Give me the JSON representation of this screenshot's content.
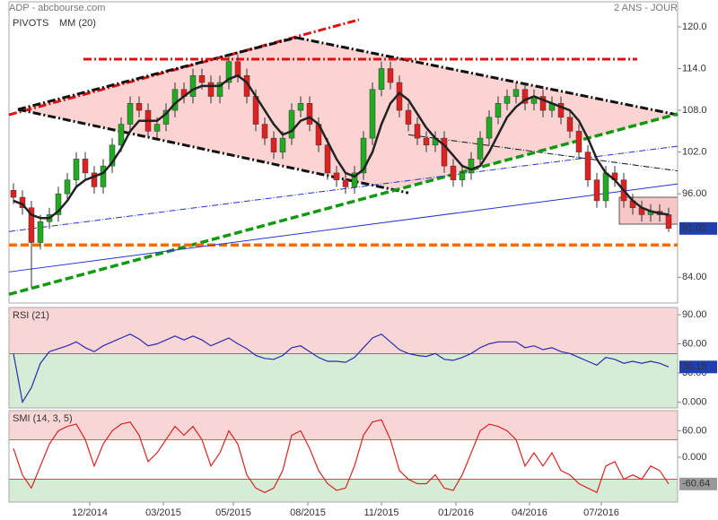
{
  "chart_data": [
    {
      "type": "candlestick",
      "title": "ADP - abcbourse.com",
      "period": "2 ANS - JOUR",
      "up_color": "#22aa22",
      "down_color": "#dd2222",
      "open": [
        96.5,
        95.5,
        94,
        89,
        92,
        93,
        96,
        98,
        101,
        99,
        97,
        100,
        103,
        106,
        109,
        108,
        105,
        106,
        108,
        111,
        110,
        113,
        112,
        110,
        112,
        115,
        113,
        110,
        106,
        104,
        102,
        104,
        108,
        109,
        106,
        103,
        99,
        98,
        97,
        99,
        104,
        111,
        114,
        112,
        108,
        106,
        104,
        103,
        104,
        100,
        98,
        99,
        101,
        104,
        107,
        109,
        110,
        111,
        109,
        110,
        108,
        109,
        107,
        105,
        102,
        98,
        95,
        99,
        98,
        95,
        94,
        93,
        93.5,
        93
      ],
      "high": [
        97.5,
        96.5,
        95,
        93,
        94,
        97,
        99,
        102,
        102,
        100,
        101,
        104,
        107,
        110,
        110,
        109,
        107,
        109,
        112,
        112,
        114,
        114,
        113,
        113,
        116,
        116,
        114,
        111,
        107,
        105,
        105,
        109,
        110,
        110,
        107,
        104,
        100,
        99,
        100,
        105,
        112,
        115,
        115,
        113,
        109,
        107,
        105,
        105,
        105,
        101,
        100,
        102,
        105,
        108,
        110,
        111,
        112,
        112,
        111,
        111,
        110,
        110,
        108,
        106,
        103,
        99,
        100,
        100,
        99,
        96,
        95,
        94.5,
        94.5,
        94
      ],
      "low": [
        94.5,
        93,
        82.5,
        88,
        91,
        92,
        95,
        97,
        98,
        96,
        96,
        99,
        102,
        105,
        107,
        104,
        104,
        105,
        107,
        109,
        109,
        111,
        109,
        109,
        111,
        112,
        109,
        105,
        103,
        101,
        101,
        103,
        107,
        105,
        102,
        98,
        97,
        96,
        96,
        98,
        103,
        110,
        111,
        107,
        105,
        103,
        102,
        102,
        99,
        97,
        97,
        98,
        100,
        103,
        106,
        108,
        109,
        108,
        108,
        107,
        107,
        106,
        104,
        101,
        97,
        94,
        94,
        97,
        94,
        93,
        92,
        92,
        92,
        90.5
      ],
      "close": [
        95.5,
        94,
        89,
        92,
        93,
        96,
        98,
        101,
        99,
        97,
        100,
        103,
        106,
        109,
        108,
        105,
        106,
        108,
        111,
        110,
        113,
        112,
        110,
        112,
        115,
        113,
        110,
        106,
        104,
        102,
        104,
        108,
        109,
        106,
        103,
        99,
        98,
        97,
        99,
        104,
        111,
        114,
        112,
        108,
        106,
        104,
        103,
        104,
        100,
        98,
        99,
        101,
        104,
        107,
        109,
        110,
        111,
        109,
        110,
        108,
        109,
        107,
        105,
        102,
        98,
        95,
        99,
        98,
        95,
        94,
        93,
        93.5,
        93,
        91.02
      ],
      "close_label": "91.02",
      "label_color": "#1f3fb0",
      "ma": {
        "name": "MM (20)",
        "color": "#222222",
        "values": [
          95,
          94.5,
          93,
          92.5,
          92.5,
          93.5,
          95,
          97,
          98,
          98.5,
          99,
          100.5,
          102.5,
          105,
          106.5,
          106.5,
          106.5,
          107.5,
          109,
          110,
          111,
          111.5,
          111.5,
          111.5,
          112.5,
          113,
          112,
          110,
          108,
          106,
          104.5,
          105,
          106.5,
          107,
          106,
          103.5,
          101,
          99,
          98.5,
          99.5,
          102,
          106,
          109,
          110.5,
          109.5,
          107.5,
          105.5,
          104,
          103,
          101.5,
          100,
          99.5,
          100,
          102,
          104.5,
          107,
          108.5,
          109.5,
          110,
          109.5,
          109,
          108.5,
          108,
          106.5,
          104,
          101,
          99,
          98,
          96.5,
          95,
          94,
          93.5,
          93.2,
          93
        ]
      },
      "pivots": {
        "name": "PIVOTS",
        "lines": [
          {
            "x": [
              -0.5,
              38.5
            ],
            "y": [
              107.35,
              121.03
            ],
            "color": "#e01010",
            "style": "dashdot"
          },
          {
            "x": [
              0.5,
              31.5
            ],
            "y": [
              108.13,
              118.45
            ],
            "color": "#111111",
            "style": "dashdot"
          },
          {
            "x": [
              31.5,
              74
            ],
            "y": [
              118.45,
              107.35
            ],
            "color": "#111111",
            "style": "dashdot"
          },
          {
            "x": [
              0.5,
              44
            ],
            "y": [
              108.13,
              96.13
            ],
            "color": "#111111",
            "style": "dashdot"
          },
          {
            "x": [
              44,
              74
            ],
            "y": [
              104.5,
              99.3
            ],
            "color": "#111111",
            "style": "thin-dashdot"
          },
          {
            "x": [
              -0.5,
              74
            ],
            "y": [
              81.55,
              107.48
            ],
            "color": "#119911",
            "style": "dash"
          },
          {
            "x": [
              7.8,
              69.5
            ],
            "y": [
              115.35,
              115.35
            ],
            "color": "#e01010",
            "style": "dashdot"
          },
          {
            "x": [
              -0.5,
              74
            ],
            "y": [
              88.65,
              88.65
            ],
            "color": "#ff6a00",
            "style": "dash"
          },
          {
            "x": [
              -0.5,
              74
            ],
            "y": [
              90.58,
              102.84
            ],
            "color": "#2233cc",
            "style": "thin-dashdot"
          },
          {
            "x": [
              -0.5,
              74
            ],
            "y": [
              84.77,
              97.42
            ],
            "color": "#2233cc",
            "style": "thin"
          }
        ]
      },
      "xlim": [
        -0.5,
        74
      ],
      "ylim": [
        80.3,
        123.6
      ],
      "yticks": [
        {
          "value": 84,
          "label": "84.00"
        },
        {
          "value": 96,
          "label": "96.00"
        },
        {
          "value": 102,
          "label": "102.0"
        },
        {
          "value": 108,
          "label": "108.0"
        },
        {
          "value": 114,
          "label": "114.0"
        },
        {
          "value": 120,
          "label": "120.0"
        }
      ]
    },
    {
      "type": "line",
      "title": "RSI (21)",
      "color": "#2b2bb0",
      "levels": [
        50
      ],
      "values": [
        50,
        0,
        15,
        40,
        52,
        55,
        58,
        62,
        56,
        52,
        58,
        62,
        66,
        70,
        65,
        58,
        60,
        64,
        68,
        64,
        68,
        64,
        58,
        62,
        66,
        60,
        55,
        48,
        45,
        44,
        48,
        56,
        58,
        52,
        46,
        42,
        42,
        41,
        46,
        56,
        66,
        70,
        62,
        54,
        50,
        48,
        47,
        50,
        44,
        43,
        46,
        50,
        56,
        60,
        62,
        62,
        62,
        56,
        58,
        54,
        56,
        52,
        50,
        46,
        42,
        38,
        46,
        44,
        40,
        42,
        40,
        42,
        40,
        36.18
      ],
      "last_label": "36.18",
      "label_color": "#1f3fb0",
      "xlim": [
        -0.5,
        74
      ],
      "ylim": [
        -6,
        97.4
      ],
      "yticks": [
        {
          "value": 0,
          "label": "0.000"
        },
        {
          "value": 30,
          "label": "30.00"
        },
        {
          "value": 60,
          "label": "60.00"
        },
        {
          "value": 90,
          "label": "90.00"
        }
      ]
    },
    {
      "type": "line",
      "title": "SMI (14, 3, 5)",
      "color": "#dd2222",
      "levels": [
        40,
        -50
      ],
      "values": [
        20,
        -40,
        -70,
        -20,
        30,
        60,
        70,
        75,
        40,
        -20,
        30,
        60,
        75,
        80,
        50,
        -10,
        10,
        40,
        70,
        50,
        70,
        40,
        -20,
        10,
        60,
        30,
        -40,
        -70,
        -80,
        -70,
        -30,
        50,
        60,
        20,
        -30,
        -60,
        -75,
        -70,
        -20,
        50,
        80,
        85,
        40,
        -30,
        -50,
        -60,
        -60,
        -40,
        -70,
        -75,
        -40,
        10,
        60,
        75,
        70,
        60,
        40,
        -20,
        10,
        -20,
        10,
        -30,
        -40,
        -60,
        -70,
        -80,
        -20,
        -10,
        -50,
        -40,
        -50,
        -20,
        -30,
        -60.64
      ],
      "last_label": "-60.64",
      "label_color": "#999999",
      "xlim": [
        -0.5,
        74
      ],
      "ylim": [
        -101.7,
        105.8
      ],
      "yticks": [
        {
          "value": 0,
          "label": "0.000"
        },
        {
          "value": 60,
          "label": "60.00"
        }
      ],
      "xticks": [
        {
          "value": 8.5,
          "label": "12/2014"
        },
        {
          "value": 16.7,
          "label": "03/2015"
        },
        {
          "value": 24.5,
          "label": "05/2015"
        },
        {
          "value": 32.8,
          "label": "08/2015"
        },
        {
          "value": 41,
          "label": "11/2015"
        },
        {
          "value": 49.3,
          "label": "01/2016"
        },
        {
          "value": 57.5,
          "label": "04/2016"
        },
        {
          "value": 65.5,
          "label": "07/2016"
        }
      ]
    }
  ]
}
